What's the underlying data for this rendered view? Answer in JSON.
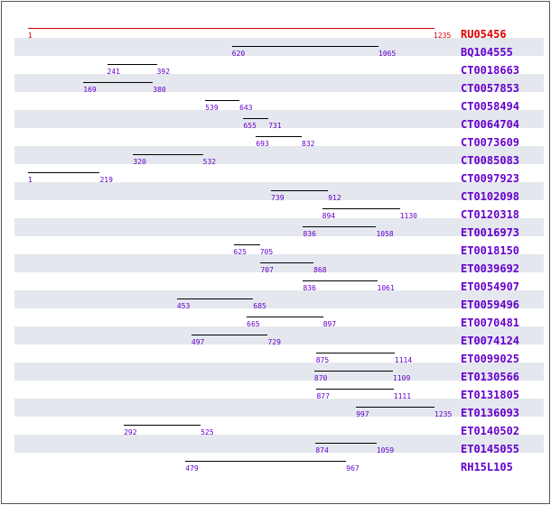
{
  "scale": {
    "min": 1,
    "max": 1235
  },
  "colors": {
    "reference": "#dd0000",
    "link": "#6600cc",
    "line": "#000000",
    "number": "#6600cc",
    "shade": "#e4e8ee"
  },
  "reference": {
    "name": "RU05456",
    "start": 1,
    "end": 1235
  },
  "alignments": [
    {
      "name": "BQ104555",
      "start": 620,
      "end": 1065
    },
    {
      "name": "CT0018663",
      "start": 241,
      "end": 392
    },
    {
      "name": "CT0057853",
      "start": 169,
      "end": 380
    },
    {
      "name": "CT0058494",
      "start": 539,
      "end": 643
    },
    {
      "name": "CT0064704",
      "start": 655,
      "end": 731
    },
    {
      "name": "CT0073609",
      "start": 693,
      "end": 832
    },
    {
      "name": "CT0085083",
      "start": 320,
      "end": 532
    },
    {
      "name": "CT0097923",
      "start": 1,
      "end": 219
    },
    {
      "name": "CT0102098",
      "start": 739,
      "end": 912
    },
    {
      "name": "CT0120318",
      "start": 894,
      "end": 1130
    },
    {
      "name": "ET0016973",
      "start": 836,
      "end": 1058
    },
    {
      "name": "ET0018150",
      "start": 625,
      "end": 705
    },
    {
      "name": "ET0039692",
      "start": 707,
      "end": 868
    },
    {
      "name": "ET0054907",
      "start": 836,
      "end": 1061
    },
    {
      "name": "ET0059496",
      "start": 453,
      "end": 685
    },
    {
      "name": "ET0070481",
      "start": 665,
      "end": 897
    },
    {
      "name": "ET0074124",
      "start": 497,
      "end": 729
    },
    {
      "name": "ET0099025",
      "start": 875,
      "end": 1114
    },
    {
      "name": "ET0130566",
      "start": 870,
      "end": 1109
    },
    {
      "name": "ET0131805",
      "start": 877,
      "end": 1111
    },
    {
      "name": "ET0136093",
      "start": 997,
      "end": 1235
    },
    {
      "name": "ET0140502",
      "start": 292,
      "end": 525
    },
    {
      "name": "ET0145055",
      "start": 874,
      "end": 1059
    },
    {
      "name": "RH15L105",
      "start": 479,
      "end": 967
    }
  ]
}
